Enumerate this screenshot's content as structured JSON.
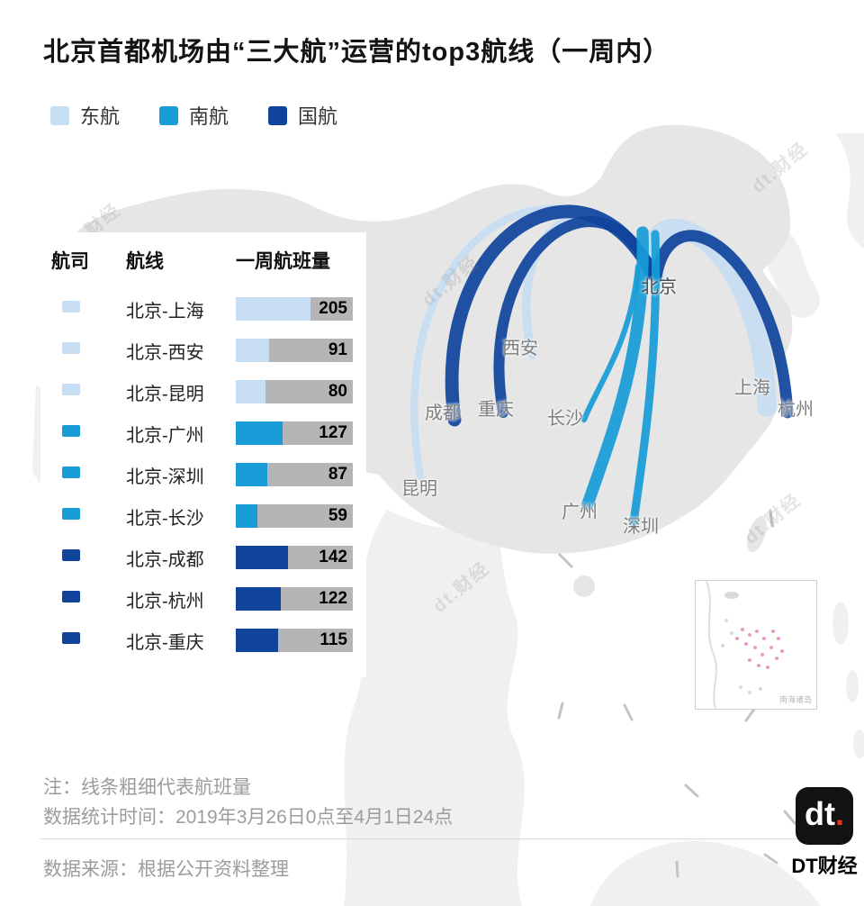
{
  "title": "北京首都机场由“三大航”运营的top3航线（一周内）",
  "legend": [
    {
      "label": "东航",
      "color": "#C7DDF1"
    },
    {
      "label": "南航",
      "color": "#179CD8"
    },
    {
      "label": "国航",
      "color": "#0F439C"
    }
  ],
  "table": {
    "headers": {
      "airline": "航司",
      "route": "航线",
      "volume": "一周航班量"
    },
    "max_flights": 205,
    "rows": [
      {
        "airline": "东航",
        "route": "北京-上海",
        "flights": 205
      },
      {
        "airline": "东航",
        "route": "北京-西安",
        "flights": 91
      },
      {
        "airline": "东航",
        "route": "北京-昆明",
        "flights": 80
      },
      {
        "airline": "南航",
        "route": "北京-广州",
        "flights": 127
      },
      {
        "airline": "南航",
        "route": "北京-深圳",
        "flights": 87
      },
      {
        "airline": "南航",
        "route": "北京-长沙",
        "flights": 59
      },
      {
        "airline": "国航",
        "route": "北京-成都",
        "flights": 142
      },
      {
        "airline": "国航",
        "route": "北京-杭州",
        "flights": 122
      },
      {
        "airline": "国航",
        "route": "北京-重庆",
        "flights": 115
      }
    ]
  },
  "map": {
    "cities": [
      "北京",
      "西安",
      "成都",
      "重庆",
      "长沙",
      "杭州",
      "上海",
      "昆明",
      "广州",
      "深圳"
    ],
    "inset_label": "南海诸岛"
  },
  "notes": {
    "note1": "注：线条粗细代表航班量",
    "note2": "数据统计时间：2019年3月26日0点至4月1日24点",
    "source": "数据来源：根据公开资料整理"
  },
  "logo": {
    "mark_text": "dt",
    "mark_dot": ".",
    "name": "DT财经"
  },
  "watermark": "dt.财经",
  "colors": {
    "bar_bg": "#B5B5B5",
    "land": "#E6E6E6",
    "neighbor_land": "#F0F0F0"
  },
  "chart_data": {
    "type": "bar",
    "title": "北京首都机场由“三大航”运营的top3航线（一周内）",
    "categories": [
      "北京-上海",
      "北京-西安",
      "北京-昆明",
      "北京-广州",
      "北京-深圳",
      "北京-长沙",
      "北京-成都",
      "北京-杭州",
      "北京-重庆"
    ],
    "values": [
      205,
      91,
      80,
      127,
      87,
      59,
      142,
      122,
      115
    ],
    "series": [
      {
        "name": "东航",
        "color": "#C7DDF1",
        "routes": [
          "北京-上海",
          "北京-西安",
          "北京-昆明"
        ],
        "values": [
          205,
          91,
          80
        ]
      },
      {
        "name": "南航",
        "color": "#179CD8",
        "routes": [
          "北京-广州",
          "北京-深圳",
          "北京-长沙"
        ],
        "values": [
          127,
          87,
          59
        ]
      },
      {
        "name": "国航",
        "color": "#0F439C",
        "routes": [
          "北京-成都",
          "北京-杭州",
          "北京-重庆"
        ],
        "values": [
          142,
          122,
          115
        ]
      }
    ],
    "value_label": "一周航班量",
    "xlim": [
      0,
      205
    ],
    "legend_position": "top-left",
    "note": "线条粗细代表航班量"
  }
}
